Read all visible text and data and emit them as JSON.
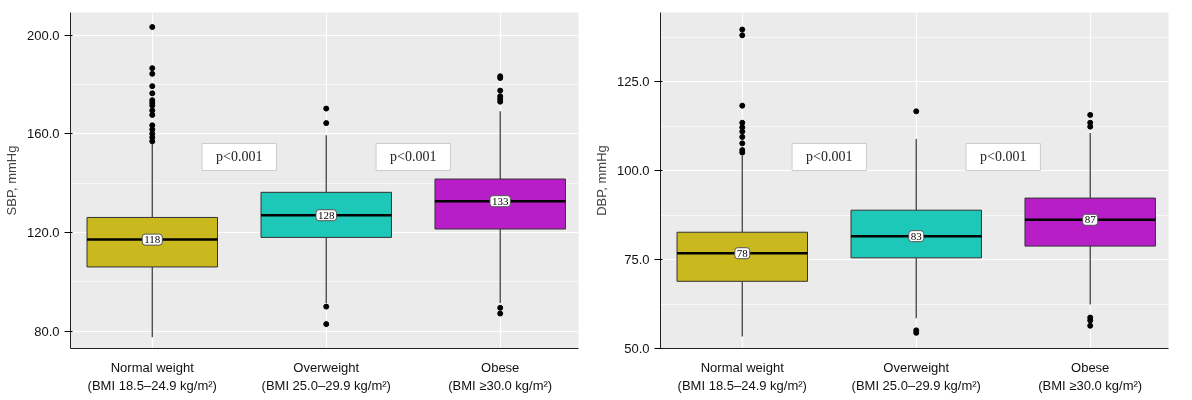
{
  "chart_data": [
    {
      "type": "box",
      "ylabel": "SBP, mmHg",
      "categories": [
        "Normal weight\n(BMI 18.5–24.9 kg/m²)",
        "Overweight\n(BMI 25.0–29.9 kg/m²)",
        "Obese\n(BMI ≥30.0 kg/m²)"
      ],
      "colors": [
        "#c9b81e",
        "#1ec8b8",
        "#b81ec8"
      ],
      "boxes": [
        {
          "low": 77.5,
          "q1": 106,
          "median": 117.1,
          "q3": 126.1,
          "high": 156,
          "outliers": [
            203.4,
            186.7,
            184.4,
            179.4,
            176.5,
            173.7,
            172.6,
            171.5,
            169.5,
            167.7,
            163.5,
            161.8,
            160.1,
            158.6,
            157
          ]
        },
        {
          "low": 91.4,
          "q1": 118,
          "median": 127,
          "q3": 136.3,
          "high": 159.5,
          "outliers": [
            170.3,
            164.4,
            89.9,
            82.8
          ]
        },
        {
          "low": 91.4,
          "q1": 121.4,
          "median": 132.7,
          "q3": 141.7,
          "high": 169.2,
          "outliers": [
            183.4,
            182.7,
            177.6,
            175.3,
            174.2,
            173.1,
            89.4,
            87.1
          ]
        }
      ],
      "value_labels": [
        "118",
        "128",
        "133"
      ],
      "ylim": [
        72.9,
        209.3
      ],
      "yticks": [
        {
          "value": 80,
          "label": "80.0"
        },
        {
          "value": 120,
          "label": "120.0"
        },
        {
          "value": 160,
          "label": "160.0"
        },
        {
          "value": 200,
          "label": "200.0"
        }
      ],
      "grid": true,
      "annotations": [
        "p<0.001",
        "p<0.001"
      ]
    },
    {
      "type": "box",
      "ylabel": "DBP, mmHg",
      "categories": [
        "Normal weight\n(BMI 18.5–24.9 kg/m²)",
        "Overweight\n(BMI 25.0–29.9 kg/m²)",
        "Obese\n(BMI ≥30.0 kg/m²)"
      ],
      "colors": [
        "#c9b81e",
        "#1ec8b8",
        "#b81ec8"
      ],
      "boxes": [
        {
          "low": 53.4,
          "q1": 68.9,
          "median": 76.8,
          "q3": 82.7,
          "high": 104.2,
          "outliers": [
            139.7,
            138.1,
            118.3,
            113.5,
            112.2,
            111,
            109.5,
            107.7,
            105.8,
            105.1
          ]
        },
        {
          "low": 58.5,
          "q1": 75.5,
          "median": 81.6,
          "q3": 88.9,
          "high": 108.9,
          "outliers": [
            116.7,
            55.1,
            54.4
          ]
        },
        {
          "low": 62.4,
          "q1": 78.8,
          "median": 86.2,
          "q3": 92.3,
          "high": 110.6,
          "outliers": [
            115.7,
            113.5,
            112.4,
            58.7,
            57.9,
            56.4
          ]
        }
      ],
      "value_labels": [
        "78",
        "83",
        "87"
      ],
      "ylim": [
        50,
        144.5
      ],
      "yticks": [
        {
          "value": 50,
          "label": "50.0"
        },
        {
          "value": 75,
          "label": "75.0"
        },
        {
          "value": 100,
          "label": "100.0"
        },
        {
          "value": 125,
          "label": "125.0"
        }
      ],
      "grid": true,
      "annotations": [
        "p<0.001",
        "p<0.001"
      ]
    }
  ]
}
